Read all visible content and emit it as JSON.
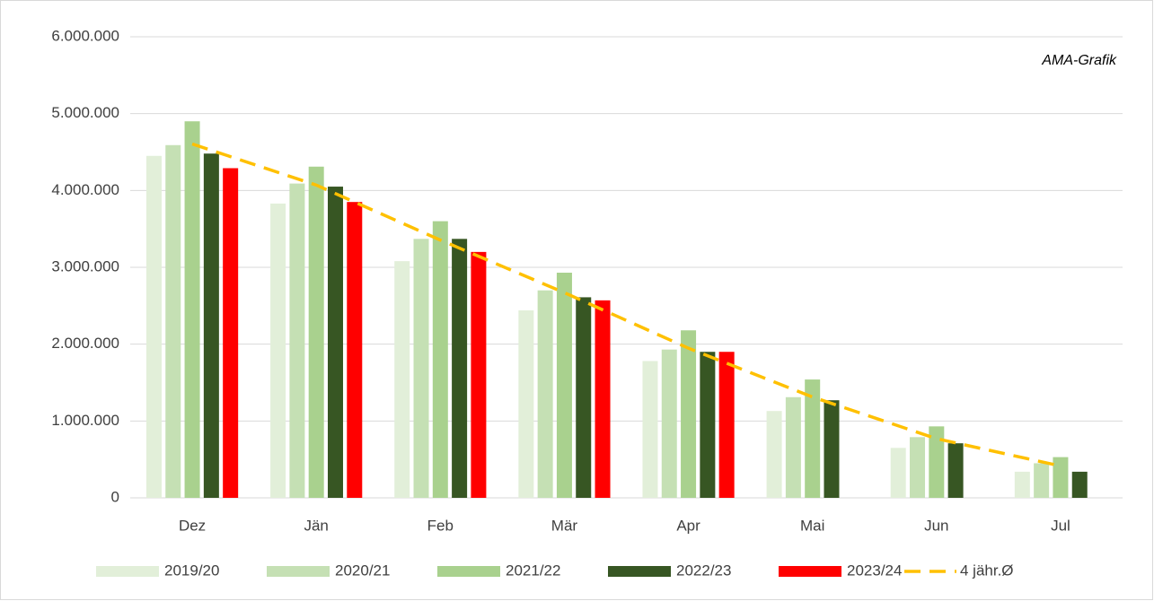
{
  "chart_data": {
    "type": "bar",
    "annotation": "AMA-Grafik",
    "categories": [
      "Dez",
      "Jän",
      "Feb",
      "Mär",
      "Apr",
      "Mai",
      "Jun",
      "Jul"
    ],
    "series": [
      {
        "name": "2019/20",
        "color": "#e2efd9",
        "values": [
          4450000,
          3830000,
          3080000,
          2440000,
          1780000,
          1130000,
          650000,
          340000
        ]
      },
      {
        "name": "2020/21",
        "color": "#c5e0b4",
        "values": [
          4590000,
          4090000,
          3370000,
          2700000,
          1930000,
          1310000,
          790000,
          450000
        ]
      },
      {
        "name": "2021/22",
        "color": "#a9d18e",
        "values": [
          4900000,
          4310000,
          3600000,
          2930000,
          2180000,
          1540000,
          930000,
          530000
        ]
      },
      {
        "name": "2022/23",
        "color": "#375623",
        "values": [
          4480000,
          4050000,
          3370000,
          2610000,
          1900000,
          1270000,
          710000,
          340000
        ]
      },
      {
        "name": "2023/24",
        "color": "#ff0000",
        "values": [
          4290000,
          3850000,
          3200000,
          2570000,
          1900000,
          null,
          null,
          null
        ]
      },
      {
        "name": "4 jähr.Ø",
        "color": "#ffc000",
        "type": "line",
        "dashed": true,
        "values": [
          4605000,
          4070000,
          3355000,
          2670000,
          1947500,
          1312500,
          770000,
          415000
        ]
      }
    ],
    "ylim": [
      0,
      6000000
    ],
    "yticks": [
      0,
      {
        "value": 1000000,
        "label": "1.000.000"
      },
      {
        "value": 2000000,
        "label": "2.000.000"
      },
      {
        "value": 3000000,
        "label": "3.000.000"
      },
      {
        "value": 4000000,
        "label": "4.000.000"
      },
      {
        "value": 5000000,
        "label": "5.000.000"
      },
      {
        "value": 6000000,
        "label": "6.000.000"
      }
    ],
    "grid": true,
    "legend": "bottom"
  }
}
